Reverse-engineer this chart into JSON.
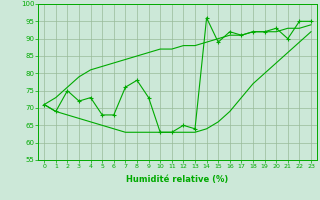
{
  "xlabel": "Humidité relative (%)",
  "x": [
    0,
    1,
    2,
    3,
    4,
    5,
    6,
    7,
    8,
    9,
    10,
    11,
    12,
    13,
    14,
    15,
    16,
    17,
    18,
    19,
    20,
    21,
    22,
    23
  ],
  "y_main": [
    71,
    69,
    75,
    72,
    73,
    68,
    68,
    76,
    78,
    73,
    63,
    63,
    65,
    64,
    96,
    89,
    92,
    91,
    92,
    92,
    93,
    90,
    95,
    95
  ],
  "y_upper": [
    71,
    73,
    76,
    79,
    81,
    82,
    83,
    84,
    85,
    86,
    87,
    87,
    88,
    88,
    89,
    90,
    91,
    91,
    92,
    92,
    92,
    93,
    93,
    94
  ],
  "y_lower": [
    71,
    69,
    68,
    67,
    66,
    65,
    64,
    63,
    63,
    63,
    63,
    63,
    63,
    63,
    64,
    66,
    69,
    73,
    77,
    80,
    83,
    86,
    89,
    92
  ],
  "ylim": [
    55,
    100
  ],
  "xlim": [
    -0.5,
    23.5
  ],
  "yticks": [
    55,
    60,
    65,
    70,
    75,
    80,
    85,
    90,
    95,
    100
  ],
  "line_color": "#00aa00",
  "bg_color": "#cce8d8",
  "grid_color": "#99bb99"
}
